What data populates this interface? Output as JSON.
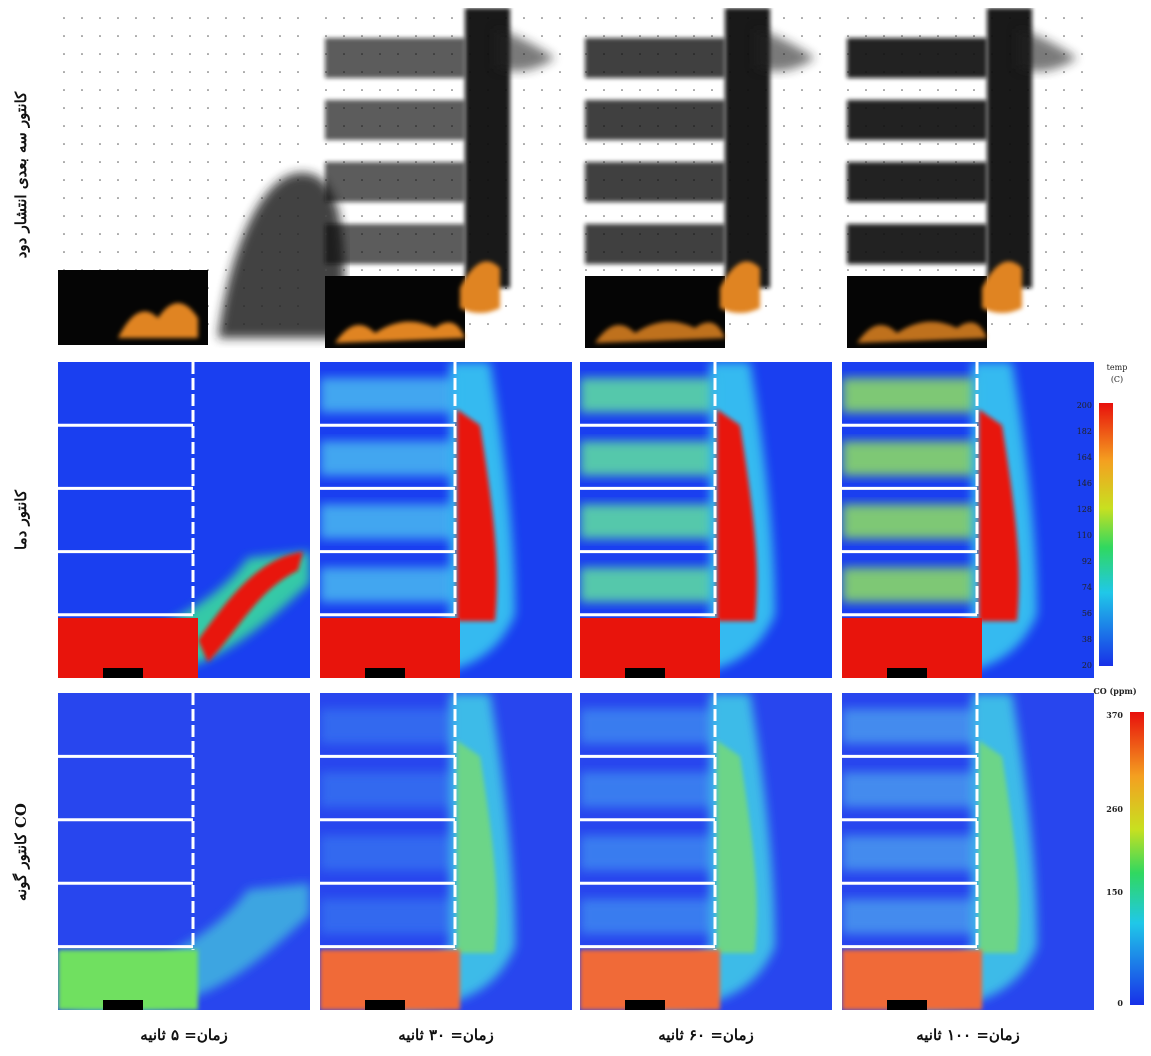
{
  "row_labels": [
    "کانتور سه بعدی انتشار دود",
    "کانتور دما",
    "کانتور گونه CO"
  ],
  "column_labels": [
    "زمان= ۵ ثانیه",
    "زمان= ۳۰ ثانیه",
    "زمان= ۶۰ ثانیه",
    "زمان= ۱۰۰ ثانیه"
  ],
  "temperature_colorbar": {
    "title": "temp",
    "unit": "(C)",
    "ticks": [
      200,
      182,
      164,
      146,
      128,
      110,
      92,
      74,
      56,
      38,
      20
    ]
  },
  "co_colorbar": {
    "title": "CO (ppm)",
    "ticks": [
      370,
      260,
      150,
      0
    ]
  }
}
